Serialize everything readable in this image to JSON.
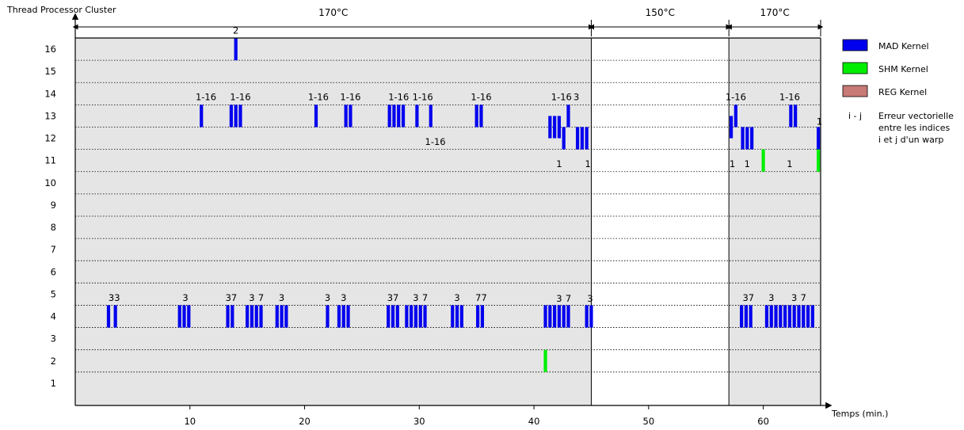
{
  "chart_data": {
    "type": "heatmap",
    "title": "",
    "ylabel": "Thread Processor Cluster",
    "xlabel": "Temps (min.)",
    "xlim": [
      0,
      65
    ],
    "ylim": [
      0,
      16.5
    ],
    "x_ticks": [
      10,
      20,
      30,
      40,
      50,
      60
    ],
    "y_ticks": [
      1,
      2,
      3,
      4,
      5,
      6,
      7,
      8,
      9,
      10,
      11,
      12,
      13,
      14,
      15,
      16
    ],
    "temperature_phases": [
      {
        "label": "170°C",
        "x_start": 0,
        "x_end": 45,
        "shaded": true
      },
      {
        "label": "150°C",
        "x_start": 45,
        "x_end": 57,
        "shaded": false
      },
      {
        "label": "170°C",
        "x_start": 57,
        "x_end": 65,
        "shaded": true
      }
    ],
    "legend": {
      "placement": "right",
      "items": [
        {
          "label": "MAD Kernel",
          "color": "#0000ee"
        },
        {
          "label": "SHM Kernel",
          "color": "#00ee00"
        },
        {
          "label": "REG Kernel",
          "color": "#c77a76"
        }
      ],
      "note_symbol": "i - j",
      "note_lines": [
        "Erreur vectorielle",
        "entre les indices",
        "i et j d'un warp"
      ]
    },
    "colors": {
      "MAD": "#0000ee",
      "SHM": "#00ee00",
      "REG": "#c77a76",
      "shade": "#e5e5e5"
    },
    "errors": [
      {
        "x": 14,
        "tpc": 16,
        "k": "MAD"
      },
      {
        "x": 11,
        "tpc": 13,
        "k": "MAD"
      },
      {
        "x": 13.6,
        "tpc": 13,
        "k": "MAD"
      },
      {
        "x": 14.0,
        "tpc": 13,
        "k": "MAD"
      },
      {
        "x": 14.4,
        "tpc": 13,
        "k": "MAD"
      },
      {
        "x": 21,
        "tpc": 13,
        "k": "MAD"
      },
      {
        "x": 23.6,
        "tpc": 13,
        "k": "MAD"
      },
      {
        "x": 24.0,
        "tpc": 13,
        "k": "MAD"
      },
      {
        "x": 27.4,
        "tpc": 13,
        "k": "MAD"
      },
      {
        "x": 27.8,
        "tpc": 13,
        "k": "MAD"
      },
      {
        "x": 28.2,
        "tpc": 13,
        "k": "MAD"
      },
      {
        "x": 28.6,
        "tpc": 13,
        "k": "MAD"
      },
      {
        "x": 29.8,
        "tpc": 13,
        "k": "MAD"
      },
      {
        "x": 31,
        "tpc": 13,
        "k": "MAD"
      },
      {
        "x": 35.0,
        "tpc": 13,
        "k": "MAD"
      },
      {
        "x": 35.4,
        "tpc": 13,
        "k": "MAD"
      },
      {
        "x": 43,
        "tpc": 13,
        "k": "MAD"
      },
      {
        "x": 57.6,
        "tpc": 13,
        "k": "MAD"
      },
      {
        "x": 62.4,
        "tpc": 13,
        "k": "MAD"
      },
      {
        "x": 62.8,
        "tpc": 13,
        "k": "MAD"
      },
      {
        "x": 41.4,
        "tpc": 12.5,
        "k": "MAD"
      },
      {
        "x": 41.8,
        "tpc": 12.5,
        "k": "MAD"
      },
      {
        "x": 42.2,
        "tpc": 12.5,
        "k": "MAD"
      },
      {
        "x": 57.2,
        "tpc": 12.5,
        "k": "MAD"
      },
      {
        "x": 42.6,
        "tpc": 12,
        "k": "MAD"
      },
      {
        "x": 43.8,
        "tpc": 12,
        "k": "MAD"
      },
      {
        "x": 44.2,
        "tpc": 12,
        "k": "MAD"
      },
      {
        "x": 44.6,
        "tpc": 12,
        "k": "MAD"
      },
      {
        "x": 58.2,
        "tpc": 12,
        "k": "MAD"
      },
      {
        "x": 58.6,
        "tpc": 12,
        "k": "MAD"
      },
      {
        "x": 59.0,
        "tpc": 12,
        "k": "MAD"
      },
      {
        "x": 64.8,
        "tpc": 12,
        "k": "MAD"
      },
      {
        "x": 60,
        "tpc": 11,
        "k": "SHM"
      },
      {
        "x": 64.8,
        "tpc": 11,
        "k": "SHM"
      },
      {
        "x": 2.9,
        "tpc": 4,
        "k": "MAD"
      },
      {
        "x": 3.5,
        "tpc": 4,
        "k": "MAD"
      },
      {
        "x": 9.1,
        "tpc": 4,
        "k": "MAD"
      },
      {
        "x": 9.5,
        "tpc": 4,
        "k": "MAD"
      },
      {
        "x": 9.9,
        "tpc": 4,
        "k": "MAD"
      },
      {
        "x": 13.3,
        "tpc": 4,
        "k": "MAD"
      },
      {
        "x": 13.7,
        "tpc": 4,
        "k": "MAD"
      },
      {
        "x": 15.0,
        "tpc": 4,
        "k": "MAD"
      },
      {
        "x": 15.4,
        "tpc": 4,
        "k": "MAD"
      },
      {
        "x": 15.8,
        "tpc": 4,
        "k": "MAD"
      },
      {
        "x": 16.2,
        "tpc": 4,
        "k": "MAD"
      },
      {
        "x": 17.6,
        "tpc": 4,
        "k": "MAD"
      },
      {
        "x": 18.0,
        "tpc": 4,
        "k": "MAD"
      },
      {
        "x": 18.4,
        "tpc": 4,
        "k": "MAD"
      },
      {
        "x": 22.0,
        "tpc": 4,
        "k": "MAD"
      },
      {
        "x": 23.0,
        "tpc": 4,
        "k": "MAD"
      },
      {
        "x": 23.4,
        "tpc": 4,
        "k": "MAD"
      },
      {
        "x": 23.8,
        "tpc": 4,
        "k": "MAD"
      },
      {
        "x": 27.3,
        "tpc": 4,
        "k": "MAD"
      },
      {
        "x": 27.7,
        "tpc": 4,
        "k": "MAD"
      },
      {
        "x": 28.1,
        "tpc": 4,
        "k": "MAD"
      },
      {
        "x": 28.9,
        "tpc": 4,
        "k": "MAD"
      },
      {
        "x": 29.3,
        "tpc": 4,
        "k": "MAD"
      },
      {
        "x": 29.7,
        "tpc": 4,
        "k": "MAD"
      },
      {
        "x": 30.1,
        "tpc": 4,
        "k": "MAD"
      },
      {
        "x": 30.5,
        "tpc": 4,
        "k": "MAD"
      },
      {
        "x": 32.9,
        "tpc": 4,
        "k": "MAD"
      },
      {
        "x": 33.3,
        "tpc": 4,
        "k": "MAD"
      },
      {
        "x": 33.7,
        "tpc": 4,
        "k": "MAD"
      },
      {
        "x": 35.1,
        "tpc": 4,
        "k": "MAD"
      },
      {
        "x": 35.5,
        "tpc": 4,
        "k": "MAD"
      },
      {
        "x": 41.0,
        "tpc": 4,
        "k": "MAD"
      },
      {
        "x": 41.4,
        "tpc": 4,
        "k": "MAD"
      },
      {
        "x": 41.8,
        "tpc": 4,
        "k": "MAD"
      },
      {
        "x": 42.2,
        "tpc": 4,
        "k": "MAD"
      },
      {
        "x": 42.6,
        "tpc": 4,
        "k": "MAD"
      },
      {
        "x": 43.0,
        "tpc": 4,
        "k": "MAD"
      },
      {
        "x": 44.6,
        "tpc": 4,
        "k": "MAD"
      },
      {
        "x": 45.0,
        "tpc": 4,
        "k": "MAD"
      },
      {
        "x": 58.1,
        "tpc": 4,
        "k": "MAD"
      },
      {
        "x": 58.5,
        "tpc": 4,
        "k": "MAD"
      },
      {
        "x": 58.9,
        "tpc": 4,
        "k": "MAD"
      },
      {
        "x": 60.3,
        "tpc": 4,
        "k": "MAD"
      },
      {
        "x": 60.7,
        "tpc": 4,
        "k": "MAD"
      },
      {
        "x": 61.1,
        "tpc": 4,
        "k": "MAD"
      },
      {
        "x": 61.5,
        "tpc": 4,
        "k": "MAD"
      },
      {
        "x": 61.9,
        "tpc": 4,
        "k": "MAD"
      },
      {
        "x": 62.3,
        "tpc": 4,
        "k": "MAD"
      },
      {
        "x": 62.7,
        "tpc": 4,
        "k": "MAD"
      },
      {
        "x": 63.1,
        "tpc": 4,
        "k": "MAD"
      },
      {
        "x": 63.5,
        "tpc": 4,
        "k": "MAD"
      },
      {
        "x": 63.9,
        "tpc": 4,
        "k": "MAD"
      },
      {
        "x": 64.3,
        "tpc": 4,
        "k": "MAD"
      },
      {
        "x": 41.0,
        "tpc": 2,
        "k": "SHM"
      }
    ],
    "annotations": [
      {
        "text": "2",
        "x": 14,
        "y": 16.7
      },
      {
        "text": "1-16",
        "x": 11.4,
        "y": 13.7
      },
      {
        "text": "1-16",
        "x": 14.4,
        "y": 13.7
      },
      {
        "text": "1-16",
        "x": 21.2,
        "y": 13.7
      },
      {
        "text": "1-16",
        "x": 24.0,
        "y": 13.7
      },
      {
        "text": "1-16",
        "x": 28.2,
        "y": 13.7
      },
      {
        "text": "1-16",
        "x": 30.3,
        "y": 13.7
      },
      {
        "text": "1-16",
        "x": 31.4,
        "y": 11.7
      },
      {
        "text": "1-16",
        "x": 35.4,
        "y": 13.7
      },
      {
        "text": "1-16",
        "x": 42.4,
        "y": 13.7
      },
      {
        "text": "3",
        "x": 43.7,
        "y": 13.7
      },
      {
        "text": "1",
        "x": 42.2,
        "y": 10.7
      },
      {
        "text": "1",
        "x": 44.7,
        "y": 10.7
      },
      {
        "text": "1-16",
        "x": 57.6,
        "y": 13.7
      },
      {
        "text": "1",
        "x": 57.3,
        "y": 10.7
      },
      {
        "text": "1",
        "x": 58.6,
        "y": 10.7
      },
      {
        "text": "1-16",
        "x": 62.3,
        "y": 13.7
      },
      {
        "text": "1",
        "x": 62.3,
        "y": 10.7
      },
      {
        "text": "1",
        "x": 64.9,
        "y": 12.6
      },
      {
        "text": "33",
        "x": 3.4,
        "y": 4.7
      },
      {
        "text": "3",
        "x": 9.6,
        "y": 4.7
      },
      {
        "text": "37",
        "x": 13.6,
        "y": 4.7
      },
      {
        "text": "3",
        "x": 15.4,
        "y": 4.7
      },
      {
        "text": "7",
        "x": 16.2,
        "y": 4.7
      },
      {
        "text": "3",
        "x": 18.0,
        "y": 4.7
      },
      {
        "text": "3",
        "x": 22.0,
        "y": 4.7
      },
      {
        "text": "3",
        "x": 23.4,
        "y": 4.7
      },
      {
        "text": "37",
        "x": 27.7,
        "y": 4.7
      },
      {
        "text": "3",
        "x": 29.7,
        "y": 4.7
      },
      {
        "text": "7",
        "x": 30.5,
        "y": 4.7
      },
      {
        "text": "3",
        "x": 33.3,
        "y": 4.7
      },
      {
        "text": "77",
        "x": 35.4,
        "y": 4.7
      },
      {
        "text": "3",
        "x": 42.2,
        "y": 4.65
      },
      {
        "text": "7",
        "x": 43.0,
        "y": 4.65
      },
      {
        "text": "3",
        "x": 44.9,
        "y": 4.65
      },
      {
        "text": "37",
        "x": 58.7,
        "y": 4.7
      },
      {
        "text": "3",
        "x": 60.7,
        "y": 4.7
      },
      {
        "text": "3",
        "x": 62.7,
        "y": 4.7
      },
      {
        "text": "7",
        "x": 63.5,
        "y": 4.7
      }
    ]
  }
}
